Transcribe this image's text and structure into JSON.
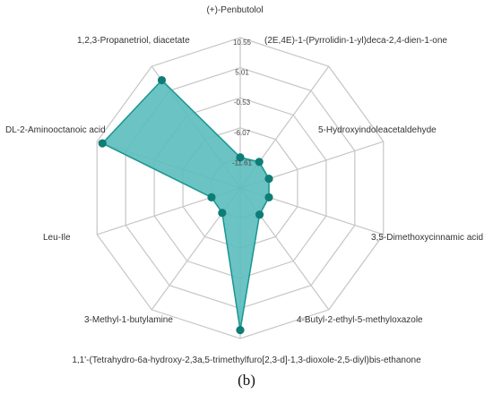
{
  "panel_label": "(b)",
  "colors": {
    "fill": "#5bbdbc",
    "stroke": "#18968f",
    "point": "#0e7d77",
    "grid": "#c6c6c6"
  },
  "chart_data": {
    "type": "radar",
    "axes": [
      "(+)-Penbutolol",
      "(2E,4E)-1-(Pyrrolidin-1-yl)deca-2,4-dien-1-one",
      "5-Hydroxyindoleacetaldehyde",
      "3,5-Dimethoxycinnamic acid",
      "4-Butyl-2-ethyl-5-methyloxazole",
      "1,1'-(Tetrahydro-6a-hydroxy-2,3a,5-trimethylfuro[2,3-d]-1,3-dioxole-2,5-diyl)bis-ethanone",
      "3-Methyl-1-butylamine",
      "Leu-Ile",
      "DL-2-Aminooctanoic acid",
      "1,2,3-Propanetriol, diacetate"
    ],
    "tick_labels": [
      "-11.61",
      "-6.07",
      "-0.53",
      "5.01",
      "10.55"
    ],
    "range": [
      -17.15,
      10.55
    ],
    "values": [
      -11.5,
      -11.2,
      -11.6,
      -11.6,
      -11.1,
      9.0,
      -11.5,
      -11.6,
      9.5,
      7.4
    ],
    "grid": true
  }
}
